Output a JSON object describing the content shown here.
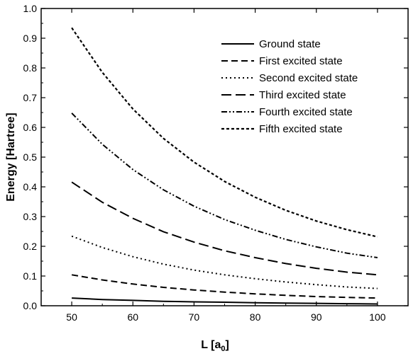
{
  "chart_data": {
    "type": "line",
    "title": "",
    "xlabel_main": "L [a",
    "xlabel_sub": "0",
    "xlabel_close": "]",
    "ylabel": "Energy [Hartree]",
    "xlim": [
      45,
      105
    ],
    "ylim": [
      0.0,
      1.0
    ],
    "x_ticks": [
      50,
      60,
      70,
      80,
      90,
      100
    ],
    "y_ticks": [
      0.0,
      0.1,
      0.2,
      0.3,
      0.4,
      0.5,
      0.6,
      0.7,
      0.8,
      0.9,
      1.0
    ],
    "y_tick_labels": [
      "0.0",
      "0.1",
      "0.2",
      "0.3",
      "0.4",
      "0.5",
      "0.6",
      "0.7",
      "0.8",
      "0.9",
      "1.0"
    ],
    "grid": false,
    "legend_position": "top-right",
    "x": [
      50,
      55,
      60,
      65,
      70,
      75,
      80,
      85,
      90,
      95,
      100
    ],
    "series": [
      {
        "name": "Ground state",
        "dash": "solid",
        "values": [
          0.026,
          0.021,
          0.018,
          0.015,
          0.013,
          0.012,
          0.01,
          0.009,
          0.008,
          0.007,
          0.006
        ]
      },
      {
        "name": "First excited state",
        "dash": "dash",
        "values": [
          0.104,
          0.087,
          0.073,
          0.062,
          0.053,
          0.046,
          0.04,
          0.035,
          0.031,
          0.028,
          0.026
        ]
      },
      {
        "name": "Second excited state",
        "dash": "dot",
        "values": [
          0.234,
          0.196,
          0.165,
          0.14,
          0.12,
          0.104,
          0.091,
          0.08,
          0.071,
          0.063,
          0.058
        ]
      },
      {
        "name": "Third excited state",
        "dash": "longdash",
        "values": [
          0.416,
          0.348,
          0.294,
          0.249,
          0.214,
          0.185,
          0.162,
          0.142,
          0.126,
          0.113,
          0.104
        ]
      },
      {
        "name": "Fourth excited state",
        "dash": "dashdotdot",
        "values": [
          0.648,
          0.543,
          0.458,
          0.39,
          0.335,
          0.29,
          0.254,
          0.223,
          0.198,
          0.177,
          0.162
        ]
      },
      {
        "name": "Fifth excited state",
        "dash": "shortdash",
        "values": [
          0.935,
          0.785,
          0.662,
          0.563,
          0.483,
          0.418,
          0.365,
          0.321,
          0.285,
          0.256,
          0.232
        ]
      }
    ]
  }
}
